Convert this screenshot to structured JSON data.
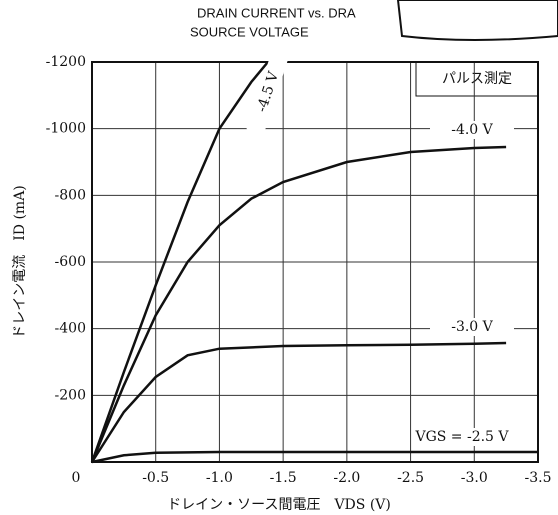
{
  "chart_data": {
    "type": "line",
    "title_lines": [
      "DRAIN CURRENT vs. DRA",
      "SOURCE VOLTAGE"
    ],
    "xlabel": "ドレイン・ソース間電圧　VDS (V)",
    "ylabel": "ドレイン電流　ID (mA)",
    "annotation": "パルス測定",
    "xlim": [
      0,
      -3.5
    ],
    "ylim": [
      0,
      -1200
    ],
    "xticks": [
      0,
      -0.5,
      {
        "value": -1,
        "label": "-1.0"
      },
      -1.5,
      {
        "value": -2,
        "label": "-2.0"
      },
      -2.5,
      {
        "value": -3,
        "label": "-3.0"
      },
      -3.5
    ],
    "yticks": [
      -200,
      -400,
      -600,
      -800,
      -1000,
      -1200
    ],
    "grid": true,
    "series": [
      {
        "name": "-4.5 V",
        "color": "#111111",
        "x": [
          0,
          -0.25,
          -0.5,
          -0.75,
          -1.0,
          -1.25,
          -1.38
        ],
        "values": [
          0,
          -270,
          -530,
          -780,
          -1000,
          -1140,
          -1200
        ]
      },
      {
        "name": "-4.0 V",
        "color": "#111111",
        "x": [
          0,
          -0.25,
          -0.5,
          -0.75,
          -1.0,
          -1.25,
          -1.5,
          -2.0,
          -2.5,
          -3.0,
          -3.25
        ],
        "values": [
          0,
          -230,
          -440,
          -600,
          -710,
          -790,
          -840,
          -900,
          -930,
          -942,
          -945
        ]
      },
      {
        "name": "-3.0 V",
        "color": "#111111",
        "x": [
          0,
          -0.25,
          -0.5,
          -0.75,
          -1.0,
          -1.5,
          -2.0,
          -2.5,
          -3.0,
          -3.25
        ],
        "values": [
          0,
          -150,
          -255,
          -320,
          -340,
          -348,
          -350,
          -352,
          -355,
          -357
        ]
      },
      {
        "name": "VGS = -2.5 V",
        "color": "#111111",
        "x": [
          0,
          -0.25,
          -0.5,
          -1.0,
          -2.0,
          -3.0,
          -3.5
        ],
        "values": [
          0,
          -20,
          -28,
          -30,
          -30,
          -30,
          -30
        ]
      }
    ]
  }
}
